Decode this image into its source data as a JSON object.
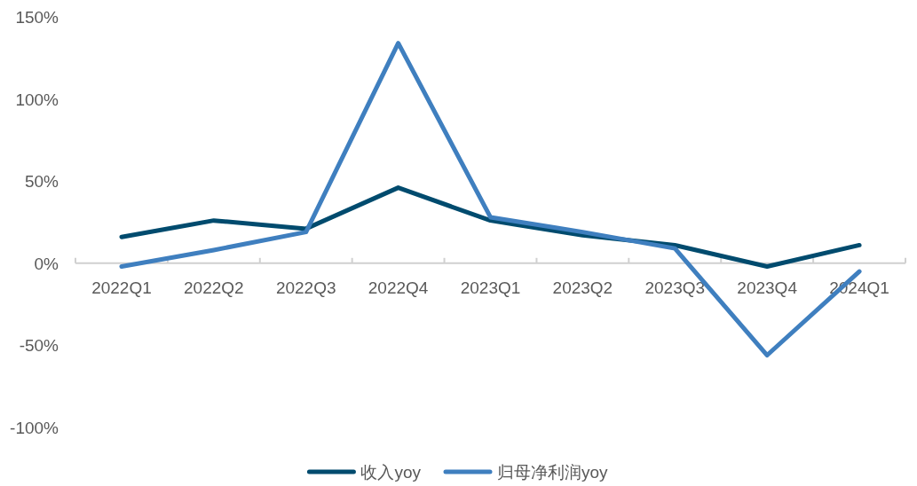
{
  "chart_data": {
    "type": "line",
    "categories": [
      "2022Q1",
      "2022Q2",
      "2022Q3",
      "2022Q4",
      "2023Q1",
      "2023Q2",
      "2023Q3",
      "2023Q4",
      "2024Q1"
    ],
    "series": [
      {
        "name": "收入yoy",
        "color": "#004b6e",
        "values": [
          16,
          26,
          21,
          46,
          26,
          17,
          11,
          -2,
          11
        ]
      },
      {
        "name": "归母净利润yoy",
        "color": "#3f7fbf",
        "values": [
          -2,
          8,
          19,
          134,
          28,
          19,
          9,
          -56,
          -5
        ]
      }
    ],
    "ylim": [
      -100,
      150
    ],
    "yticks": [
      {
        "value": -100,
        "label": "-100%"
      },
      {
        "value": -50,
        "label": "-50%"
      },
      {
        "value": 0,
        "label": "0%"
      },
      {
        "value": 50,
        "label": "50%"
      },
      {
        "value": 100,
        "label": "100%"
      },
      {
        "value": 150,
        "label": "150%"
      }
    ],
    "legend": "bottom",
    "grid": false,
    "marker": "none",
    "line_style": "solid"
  }
}
